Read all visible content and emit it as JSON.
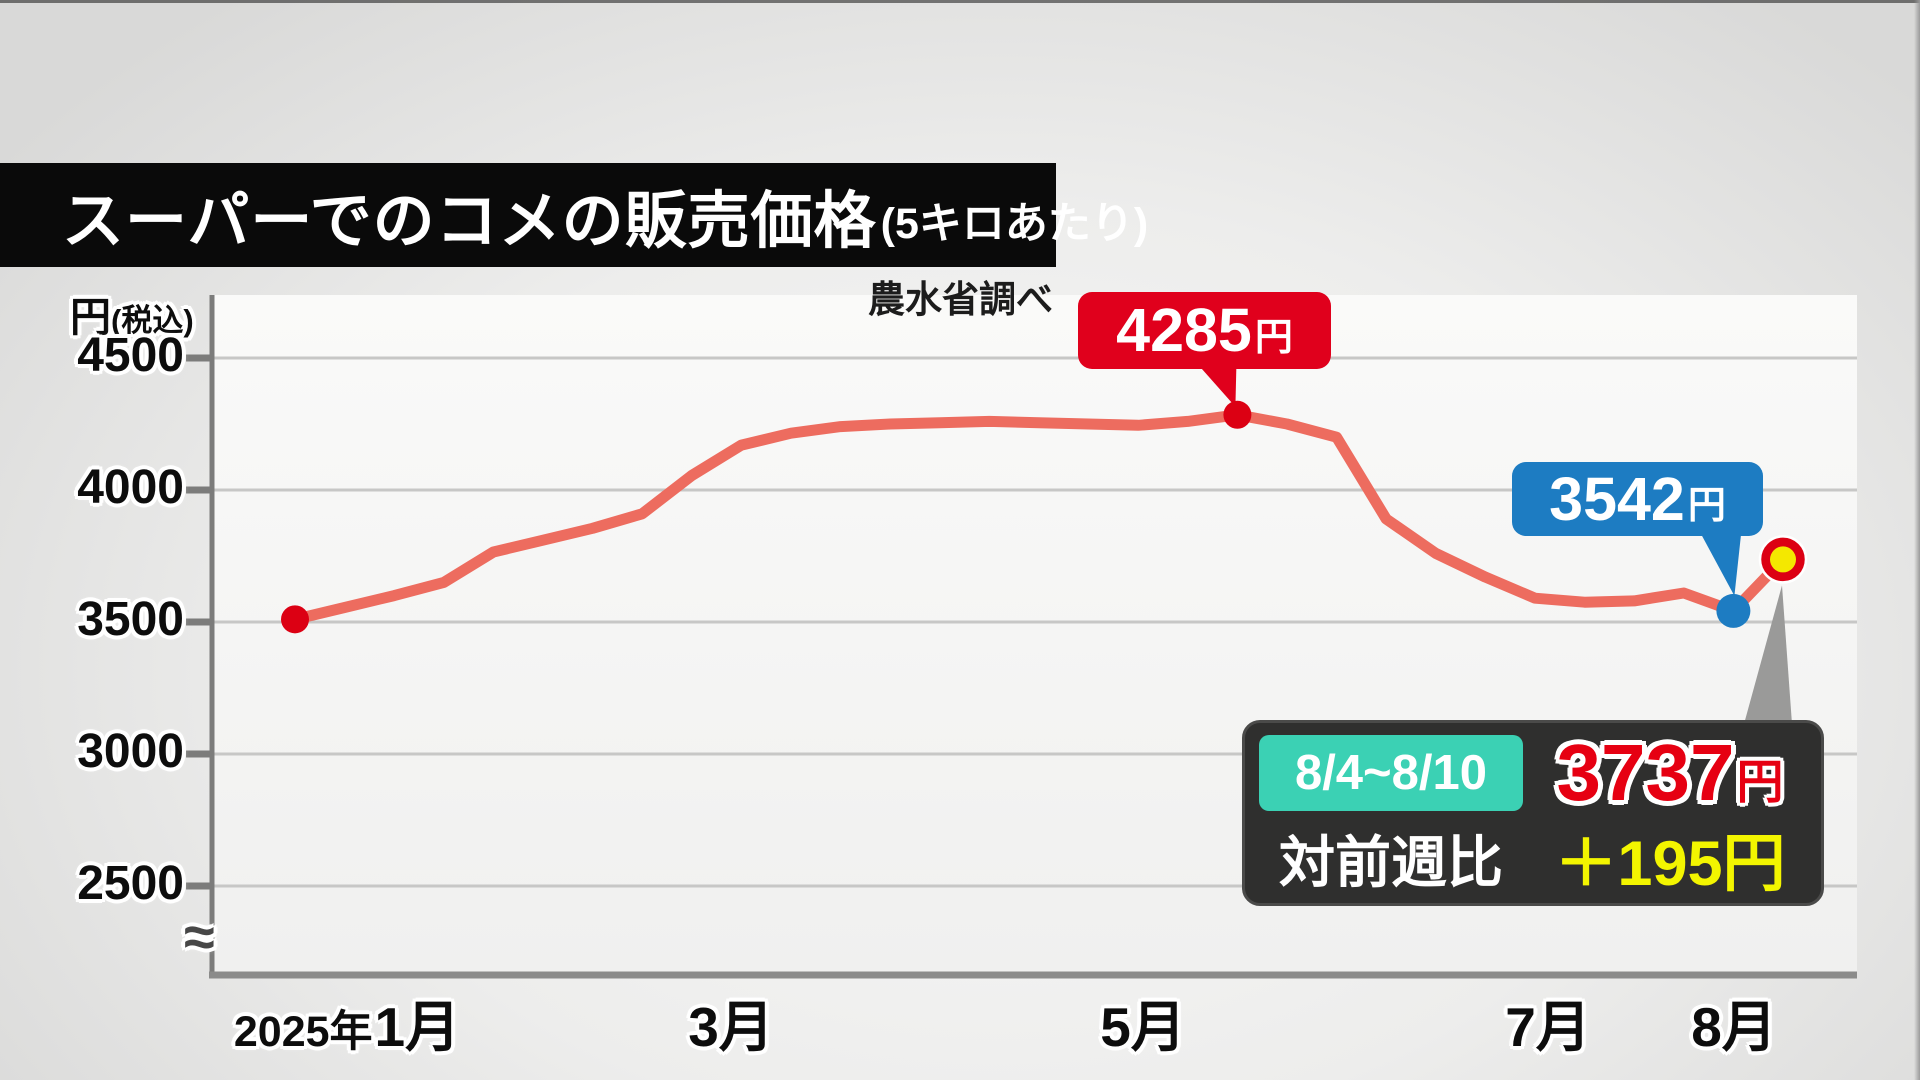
{
  "title": {
    "main": "スーパーでのコメの販売価格",
    "unit": "(5キロあたり)"
  },
  "source": "農水省調べ",
  "y_axis": {
    "unit_main": "円",
    "unit_sub": "(税込)",
    "break_symbol": "≈"
  },
  "x_axis": {
    "year": "2025年",
    "months": [
      "1月",
      "3月",
      "5月",
      "7月",
      "8月"
    ]
  },
  "callouts": {
    "peak": {
      "value": "4285",
      "unit": "円"
    },
    "dip": {
      "value": "3542",
      "unit": "円"
    }
  },
  "info_box": {
    "period": "8/4~8/10",
    "price": "3737",
    "price_unit": "円",
    "comparison_label": "対前週比",
    "change": "＋195円"
  },
  "colors": {
    "line": "#ed6c5f",
    "red_marker": "#dc0013",
    "blue_marker": "#1d7cc2",
    "yellow_marker": "#f4e800",
    "peak_callout": "#e0001c",
    "dip_callout": "#1d7cc2",
    "info_tail_gray": "#9a9a99",
    "grid": "#c7c7c6",
    "axis": "#7c7c7b"
  },
  "chart_data": {
    "type": "line",
    "title": "スーパーでのコメの販売価格(5キロあたり)",
    "source": "農水省調べ",
    "ylabel": "円(税込)",
    "y_ticks": [
      4500,
      4000,
      3500,
      3000,
      2500
    ],
    "ylim": [
      2500,
      4500
    ],
    "y_axis_break": true,
    "x_labels": [
      "2025年1月",
      "3月",
      "5月",
      "7月",
      "8月"
    ],
    "x_interval": "weekly",
    "values": [
      3510,
      3555,
      3600,
      3650,
      3765,
      3810,
      3855,
      3910,
      4055,
      4170,
      4215,
      4240,
      4250,
      4255,
      4260,
      4255,
      4250,
      4245,
      4260,
      4285,
      4250,
      4200,
      3890,
      3760,
      3670,
      3590,
      3575,
      3580,
      3610,
      3542,
      3737
    ],
    "annotations": [
      {
        "index": 0,
        "marker": "red-dot"
      },
      {
        "index": 19,
        "value": 4285,
        "label": "4285円",
        "marker": "red-dot"
      },
      {
        "index": 29,
        "value": 3542,
        "label": "3542円",
        "marker": "blue-dot"
      },
      {
        "index": 30,
        "value": 3737,
        "label": "3737円",
        "marker": "yellow-red-dot",
        "period": "8/4~8/10",
        "week_over_week": "＋195円"
      }
    ],
    "grid": true,
    "legend": false
  }
}
